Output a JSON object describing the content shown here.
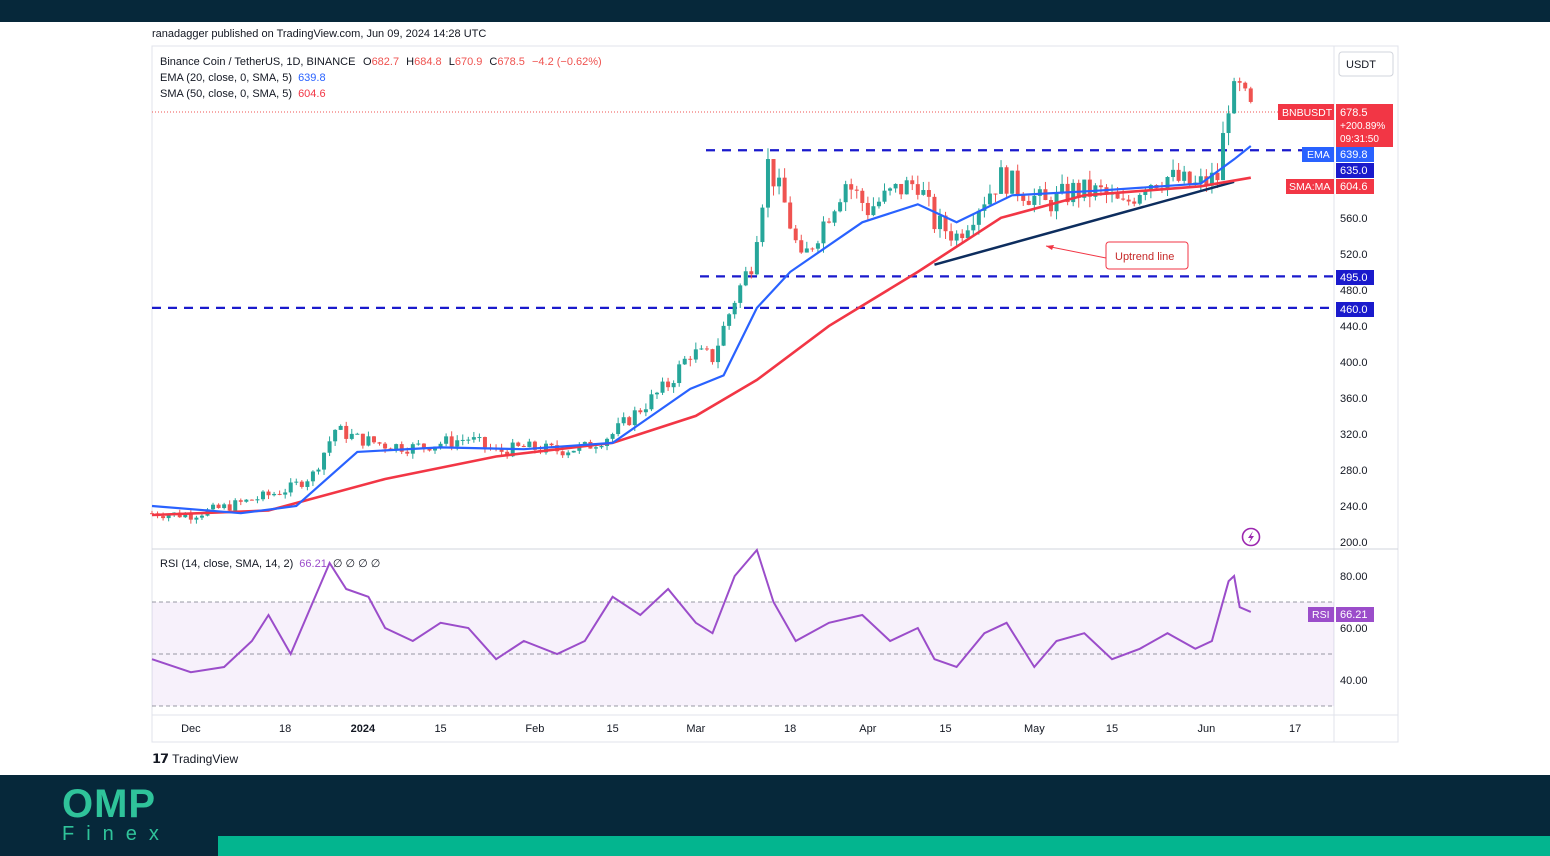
{
  "publisher": "ranadagger published on TradingView.com, Jun 09, 2024 14:28 UTC",
  "brand": {
    "tradingview": "TradingView",
    "footer_logo_top": "OMP",
    "footer_logo_bottom": "Finex"
  },
  "legend": {
    "symbol": "Binance Coin / TetherUS, 1D, BINANCE",
    "o_label": "O",
    "o": "682.7",
    "h_label": "H",
    "h": "684.8",
    "l_label": "L",
    "l": "670.9",
    "c_label": "C",
    "c": "678.5",
    "change": "−4.2 (−0.62%)",
    "ema_label": "EMA (20, close, 0, SMA, 5)",
    "ema_value": "639.8",
    "sma_label": "SMA (50, close, 0, SMA, 5)",
    "sma_value": "604.6",
    "rsi_label": "RSI (14, close, SMA, 14, 2)",
    "rsi_value": "66.21",
    "rsi_extra": "∅ ∅ ∅ ∅"
  },
  "currency": "USDT",
  "price_axis": [
    "560.0",
    "520.0",
    "480.0",
    "440.0",
    "400.0",
    "360.0",
    "320.0",
    "280.0",
    "240.0",
    "200.0"
  ],
  "rsi_axis": [
    "80.00",
    "60.00",
    "40.00"
  ],
  "time_axis": [
    "Dec",
    "18",
    "2024",
    "15",
    "Feb",
    "15",
    "Mar",
    "18",
    "Apr",
    "15",
    "May",
    "15",
    "Jun",
    "17"
  ],
  "badges": {
    "symbol": "BNBUSDT",
    "price": "678.5",
    "change_pct": "+200.89%",
    "countdown": "09:31:50",
    "ema_label": "EMA",
    "ema": "639.8",
    "level_635": "635.0",
    "sma_label": "SMA:MA",
    "sma": "604.6",
    "level_495": "495.0",
    "level_460": "460.0",
    "rsi_label": "RSI",
    "rsi": "66.21"
  },
  "annotation": "Uptrend line",
  "colors": {
    "up": "#26a69a",
    "down": "#ef5350",
    "ema": "#2962ff",
    "sma": "#f23645",
    "rsi": "#9b4dca",
    "level": "#1a1acc",
    "trend": "#0d2d5e"
  },
  "chart_data": {
    "type": "candlestick",
    "title": "Binance Coin / TetherUS, 1D, BINANCE",
    "ylabel": "USDT",
    "ylim": [
      200,
      720
    ],
    "x_range": [
      "2023-11-24",
      "2024-06-24"
    ],
    "levels": [
      635.0,
      495.0,
      460.0
    ],
    "last": {
      "open": 682.7,
      "high": 684.8,
      "low": 670.9,
      "close": 678.5,
      "change": -4.2,
      "change_pct": -0.62
    },
    "trendline": {
      "label": "Uptrend line",
      "from": {
        "date": "2024-04-13",
        "price": 508
      },
      "to": {
        "date": "2024-06-06",
        "price": 600
      }
    },
    "close_series": [
      [
        "2023-11-24",
        232
      ],
      [
        "2023-12-01",
        230
      ],
      [
        "2023-12-08",
        240
      ],
      [
        "2023-12-15",
        252
      ],
      [
        "2023-12-19",
        260
      ],
      [
        "2023-12-23",
        275
      ],
      [
        "2023-12-27",
        325
      ],
      [
        "2023-12-31",
        315
      ],
      [
        "2024-01-05",
        308
      ],
      [
        "2024-01-10",
        305
      ],
      [
        "2024-01-15",
        310
      ],
      [
        "2024-01-20",
        315
      ],
      [
        "2024-01-25",
        300
      ],
      [
        "2024-01-30",
        305
      ],
      [
        "2024-02-05",
        302
      ],
      [
        "2024-02-10",
        305
      ],
      [
        "2024-02-15",
        320
      ],
      [
        "2024-02-20",
        348
      ],
      [
        "2024-02-25",
        375
      ],
      [
        "2024-02-29",
        410
      ],
      [
        "2024-03-04",
        405
      ],
      [
        "2024-03-08",
        470
      ],
      [
        "2024-03-11",
        510
      ],
      [
        "2024-03-14",
        620
      ],
      [
        "2024-03-17",
        575
      ],
      [
        "2024-03-20",
        510
      ],
      [
        "2024-03-24",
        555
      ],
      [
        "2024-03-28",
        600
      ],
      [
        "2024-04-01",
        570
      ],
      [
        "2024-04-06",
        590
      ],
      [
        "2024-04-10",
        600
      ],
      [
        "2024-04-13",
        555
      ],
      [
        "2024-04-17",
        540
      ],
      [
        "2024-04-21",
        575
      ],
      [
        "2024-04-25",
        605
      ],
      [
        "2024-04-29",
        590
      ],
      [
        "2024-05-03",
        575
      ],
      [
        "2024-05-08",
        590
      ],
      [
        "2024-05-13",
        588
      ],
      [
        "2024-05-17",
        572
      ],
      [
        "2024-05-21",
        600
      ],
      [
        "2024-05-25",
        605
      ],
      [
        "2024-05-30",
        595
      ],
      [
        "2024-06-03",
        605
      ],
      [
        "2024-06-05",
        690
      ],
      [
        "2024-06-07",
        700
      ],
      [
        "2024-06-09",
        678.5
      ]
    ],
    "ema20": [
      [
        "2023-11-24",
        240
      ],
      [
        "2023-12-10",
        232
      ],
      [
        "2023-12-20",
        240
      ],
      [
        "2023-12-31",
        300
      ],
      [
        "2024-01-15",
        305
      ],
      [
        "2024-01-30",
        303
      ],
      [
        "2024-02-15",
        310
      ],
      [
        "2024-02-29",
        370
      ],
      [
        "2024-03-06",
        385
      ],
      [
        "2024-03-12",
        460
      ],
      [
        "2024-03-18",
        500
      ],
      [
        "2024-03-31",
        555
      ],
      [
        "2024-04-10",
        575
      ],
      [
        "2024-04-17",
        555
      ],
      [
        "2024-04-27",
        585
      ],
      [
        "2024-05-12",
        590
      ],
      [
        "2024-05-31",
        598
      ],
      [
        "2024-06-06",
        625
      ],
      [
        "2024-06-09",
        639.8
      ]
    ],
    "sma50": [
      [
        "2023-11-24",
        230
      ],
      [
        "2023-12-15",
        235
      ],
      [
        "2024-01-05",
        270
      ],
      [
        "2024-01-25",
        295
      ],
      [
        "2024-02-15",
        310
      ],
      [
        "2024-03-01",
        340
      ],
      [
        "2024-03-12",
        380
      ],
      [
        "2024-03-25",
        440
      ],
      [
        "2024-04-10",
        500
      ],
      [
        "2024-04-25",
        560
      ],
      [
        "2024-05-10",
        585
      ],
      [
        "2024-05-31",
        595
      ],
      [
        "2024-06-09",
        604.6
      ]
    ],
    "rsi": {
      "ylim": [
        30,
        92
      ],
      "bands": [
        70,
        30
      ],
      "series": [
        [
          "2023-11-24",
          48
        ],
        [
          "2023-12-01",
          43
        ],
        [
          "2023-12-07",
          45
        ],
        [
          "2023-12-12",
          55
        ],
        [
          "2023-12-15",
          65
        ],
        [
          "2023-12-19",
          50
        ],
        [
          "2023-12-23",
          70
        ],
        [
          "2023-12-26",
          85
        ],
        [
          "2023-12-29",
          75
        ],
        [
          "2024-01-02",
          72
        ],
        [
          "2024-01-05",
          60
        ],
        [
          "2024-01-10",
          55
        ],
        [
          "2024-01-15",
          62
        ],
        [
          "2024-01-20",
          60
        ],
        [
          "2024-01-25",
          48
        ],
        [
          "2024-01-30",
          55
        ],
        [
          "2024-02-05",
          50
        ],
        [
          "2024-02-10",
          55
        ],
        [
          "2024-02-15",
          72
        ],
        [
          "2024-02-20",
          65
        ],
        [
          "2024-02-25",
          75
        ],
        [
          "2024-03-01",
          62
        ],
        [
          "2024-03-04",
          58
        ],
        [
          "2024-03-08",
          80
        ],
        [
          "2024-03-12",
          90
        ],
        [
          "2024-03-15",
          70
        ],
        [
          "2024-03-19",
          55
        ],
        [
          "2024-03-25",
          62
        ],
        [
          "2024-03-31",
          65
        ],
        [
          "2024-04-05",
          55
        ],
        [
          "2024-04-10",
          60
        ],
        [
          "2024-04-13",
          48
        ],
        [
          "2024-04-17",
          45
        ],
        [
          "2024-04-22",
          58
        ],
        [
          "2024-04-26",
          62
        ],
        [
          "2024-05-01",
          45
        ],
        [
          "2024-05-05",
          55
        ],
        [
          "2024-05-10",
          58
        ],
        [
          "2024-05-15",
          48
        ],
        [
          "2024-05-20",
          52
        ],
        [
          "2024-05-25",
          58
        ],
        [
          "2024-05-30",
          52
        ],
        [
          "2024-06-02",
          55
        ],
        [
          "2024-06-05",
          78
        ],
        [
          "2024-06-06",
          80
        ],
        [
          "2024-06-07",
          68
        ],
        [
          "2024-06-09",
          66.21
        ]
      ]
    }
  }
}
